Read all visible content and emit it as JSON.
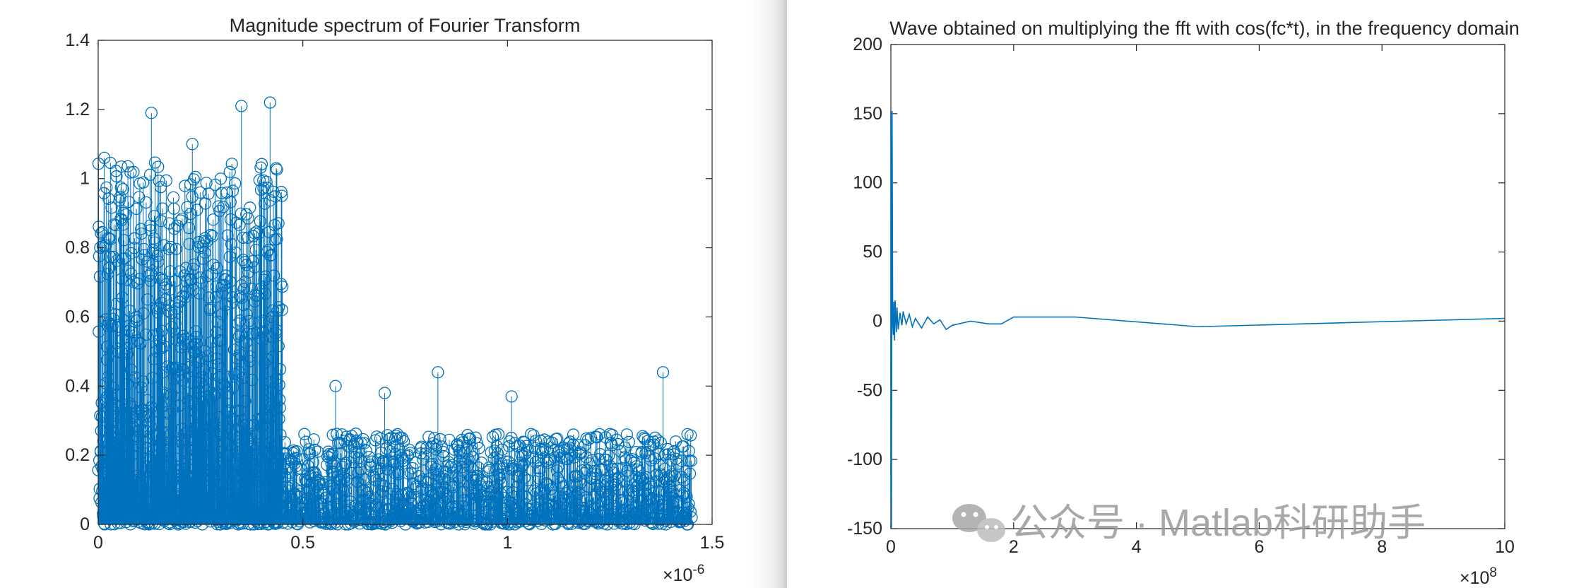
{
  "chart_data": [
    {
      "type": "stem",
      "title": "Magnitude spectrum of Fourier Transform",
      "xlabel": "",
      "ylabel": "",
      "xlim": [
        0,
        1.5e-06
      ],
      "ylim": [
        0,
        1.4
      ],
      "x_ticks": [
        0,
        0.5,
        1,
        1.5
      ],
      "x_tick_labels": [
        "0",
        "0.5",
        "1",
        "1.5"
      ],
      "x_exponent": "×10",
      "x_exponent_power": "-6",
      "y_ticks": [
        0,
        0.2,
        0.4,
        0.6,
        0.8,
        1,
        1.2,
        1.4
      ],
      "y_tick_labels": [
        "0",
        "0.2",
        "0.4",
        "0.6",
        "0.8",
        "1",
        "1.2",
        "1.4"
      ],
      "color": "#0072BD",
      "marker": "circle",
      "grid": false,
      "series": [
        {
          "segments": [
            {
              "x_range": [
                0,
                4.5e-07
              ],
              "amplitude_range": [
                0,
                1.22
              ],
              "typical_peak": 1.0
            },
            {
              "x_range": [
                4.5e-07,
                1.45e-06
              ],
              "amplitude_range": [
                0,
                0.44
              ],
              "typical_peak": 0.25
            }
          ],
          "notable_peaks": [
            {
              "x": 1.5e-08,
              "y": 1.06
            },
            {
              "x": 1.3e-07,
              "y": 1.19
            },
            {
              "x": 2.3e-07,
              "y": 1.1
            },
            {
              "x": 3.5e-07,
              "y": 1.21
            },
            {
              "x": 4.2e-07,
              "y": 1.22
            },
            {
              "x": 4.35e-07,
              "y": 1.03
            },
            {
              "x": 5.8e-07,
              "y": 0.4
            },
            {
              "x": 7e-07,
              "y": 0.38
            },
            {
              "x": 8.3e-07,
              "y": 0.44
            },
            {
              "x": 1.01e-06,
              "y": 0.37
            },
            {
              "x": 1.38e-06,
              "y": 0.44
            }
          ]
        }
      ]
    },
    {
      "type": "line",
      "title": "Wave obtained on multiplying the fft with cos(fc*t), in the frequency domain",
      "xlabel": "",
      "ylabel": "",
      "xlim": [
        0,
        1000000000.0
      ],
      "ylim": [
        -150,
        200
      ],
      "x_ticks": [
        0,
        2,
        4,
        6,
        8,
        10
      ],
      "x_tick_labels": [
        "0",
        "2",
        "4",
        "6",
        "8",
        "10"
      ],
      "x_exponent": "×10",
      "x_exponent_power": "8",
      "y_ticks": [
        -150,
        -100,
        -50,
        0,
        50,
        100,
        150,
        200
      ],
      "y_tick_labels": [
        "-150",
        "-100",
        "-50",
        "0",
        "50",
        "100",
        "150",
        "200"
      ],
      "color": "#0072BD",
      "grid": false,
      "series": [
        {
          "x": [
            0,
            0,
            1000000.0,
            2000000.0,
            3000000.0,
            4000000.0,
            5000000.0,
            6000000.0,
            7000000.0,
            8000000.0,
            9000000.0,
            10000000.0,
            12000000.0,
            15000000.0,
            18000000.0,
            20000000.0,
            25000000.0,
            30000000.0,
            35000000.0,
            40000000.0,
            50000000.0,
            60000000.0,
            70000000.0,
            80000000.0,
            90000000.0,
            100000000.0,
            120000000.0,
            130000000.0,
            160000000.0,
            180000000.0,
            200000000.0,
            300000000.0,
            500000000.0,
            1000000000.0
          ],
          "y": [
            -130,
            150,
            -150,
            152,
            0,
            -10,
            14,
            -14,
            15,
            2,
            -8,
            10,
            -6,
            6,
            -3,
            7,
            -2,
            5,
            -4,
            2,
            -5,
            3,
            -2,
            1,
            -6,
            -3,
            -1,
            0,
            -2,
            -2,
            3,
            3,
            -4,
            2
          ]
        }
      ]
    }
  ],
  "watermark": {
    "logo": "wechat-logo",
    "text": "公众号 · Matlab科研助手"
  }
}
